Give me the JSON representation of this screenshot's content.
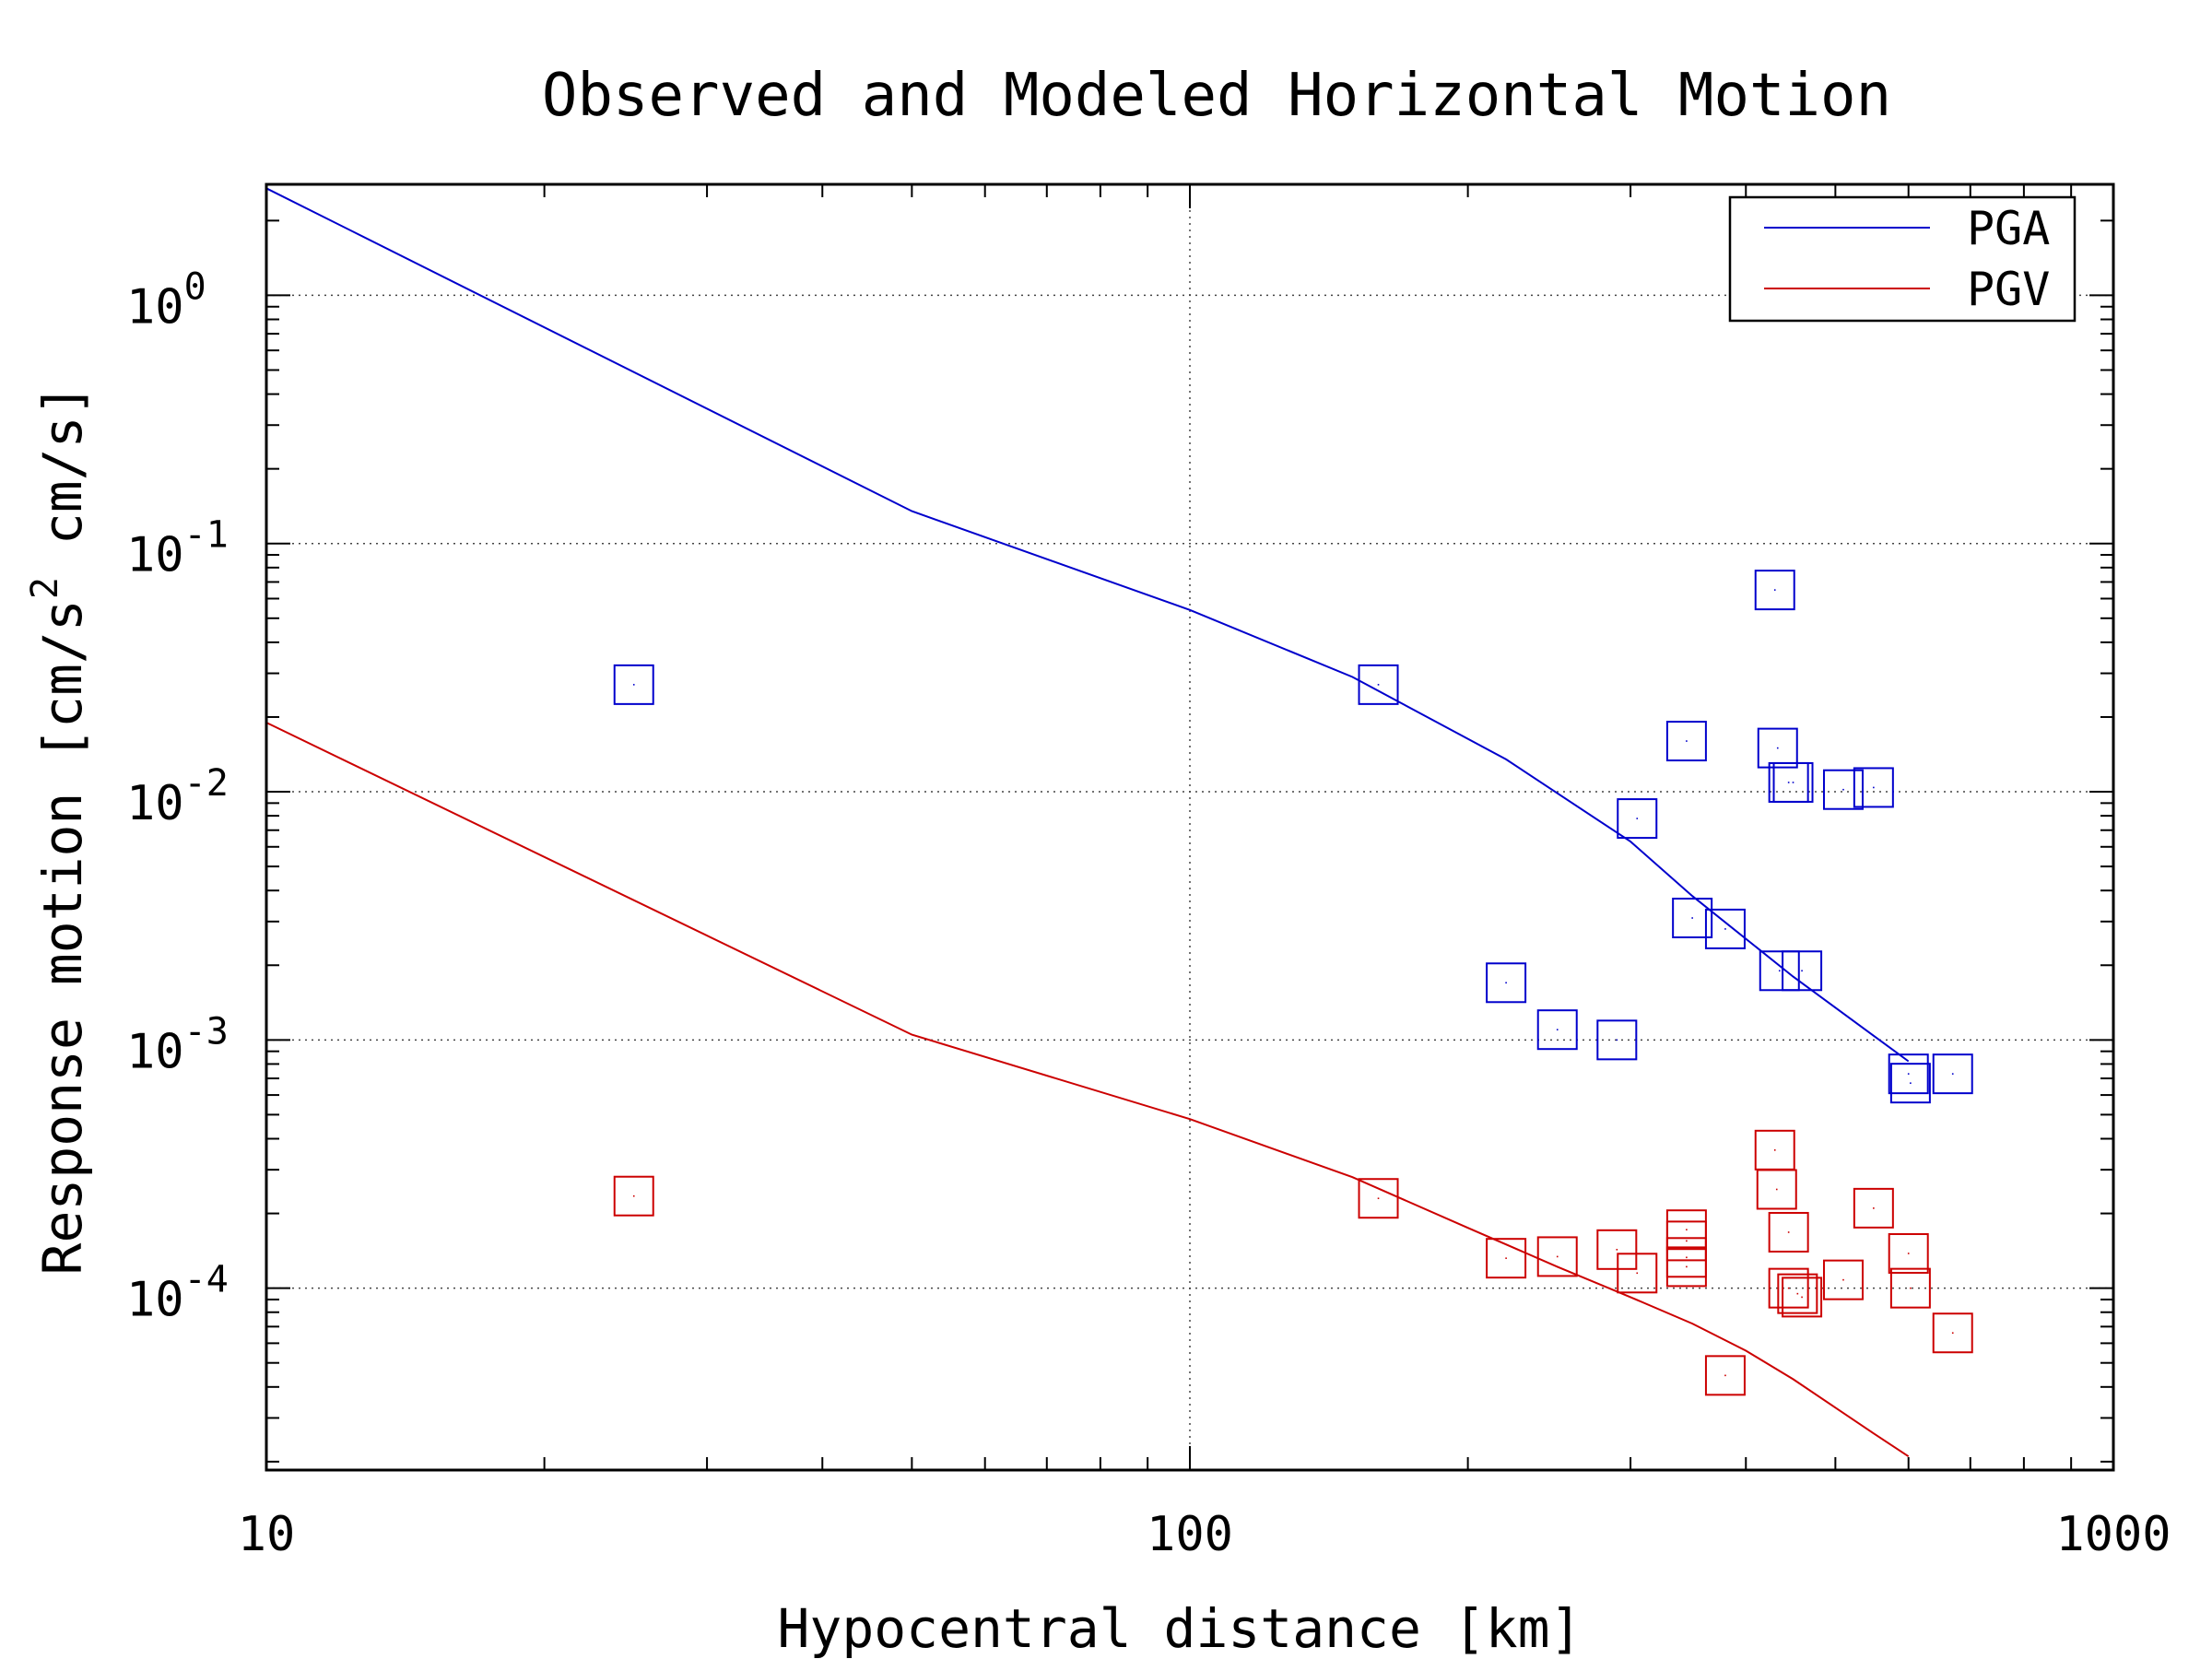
{
  "chart_data": {
    "type": "scatter",
    "title": "Observed and Modeled Horizontal Motion",
    "xlabel": "Hypocentral distance [km]",
    "ylabel_parts": [
      "Response motion  [cm/s",
      "2",
      "  cm/s]"
    ],
    "x_scale": "log",
    "y_scale": "log",
    "xlim": [
      10,
      1000
    ],
    "ylim": [
      1.85e-05,
      2.8
    ],
    "x_ticks": [
      {
        "value": 10,
        "label": "10"
      },
      {
        "value": 100,
        "label": "100"
      },
      {
        "value": 1000,
        "label": "1000"
      }
    ],
    "y_ticks": [
      {
        "value": 1,
        "base": "10",
        "exp": "0"
      },
      {
        "value": 0.1,
        "base": "10",
        "exp": "-1"
      },
      {
        "value": 0.01,
        "base": "10",
        "exp": "-2"
      },
      {
        "value": 0.001,
        "base": "10",
        "exp": "-3"
      },
      {
        "value": 0.0001,
        "base": "10",
        "exp": "-4"
      }
    ],
    "grid": true,
    "legend_position": "top-right",
    "series": [
      {
        "name": "PGA",
        "color": "#0000cc",
        "model_line": {
          "x": [
            10,
            50,
            100,
            150,
            220,
            300,
            350,
            450,
            600
          ],
          "y": [
            2.7,
            0.135,
            0.054,
            0.029,
            0.0135,
            0.0063,
            0.0038,
            0.0018,
            0.00082
          ]
        },
        "observed": {
          "x": [
            25,
            160,
            220,
            250,
            290,
            305,
            345,
            350,
            380,
            430,
            433,
            435,
            445,
            450,
            460,
            510,
            550,
            600,
            603,
            670
          ],
          "y": [
            0.027,
            0.027,
            0.0017,
            0.0011,
            0.001,
            0.0078,
            0.016,
            0.0031,
            0.0028,
            0.065,
            0.015,
            0.0019,
            0.0109,
            0.0109,
            0.0019,
            0.0102,
            0.0104,
            0.00073,
            0.00067,
            0.00073
          ]
        }
      },
      {
        "name": "PGV",
        "color": "#cc0000",
        "model_line": {
          "x": [
            10,
            50,
            100,
            150,
            200,
            250,
            300,
            350,
            400,
            450,
            500,
            550,
            600
          ],
          "y": [
            0.019,
            0.00105,
            0.00048,
            0.00028,
            0.000175,
            0.000122,
            9.2e-05,
            7.2e-05,
            5.6e-05,
            4.3e-05,
            3.3e-05,
            2.6e-05,
            2.1e-05
          ]
        },
        "observed": {
          "x": [
            25,
            160,
            220,
            250,
            290,
            305,
            345,
            345,
            345,
            345,
            380,
            430,
            432,
            445,
            445,
            455,
            460,
            510,
            550,
            600,
            603,
            670
          ],
          "y": [
            0.000235,
            0.00023,
            0.000132,
            0.000134,
            0.000143,
            0.000115,
            0.000172,
            0.000155,
            0.000133,
            0.000122,
            4.45e-05,
            0.00036,
            0.00025,
            0.000168,
            0.0001,
            9.5e-05,
            9.2e-05,
            0.000108,
            0.00021,
            0.000138,
            0.0001,
            6.6e-05
          ]
        }
      }
    ]
  }
}
